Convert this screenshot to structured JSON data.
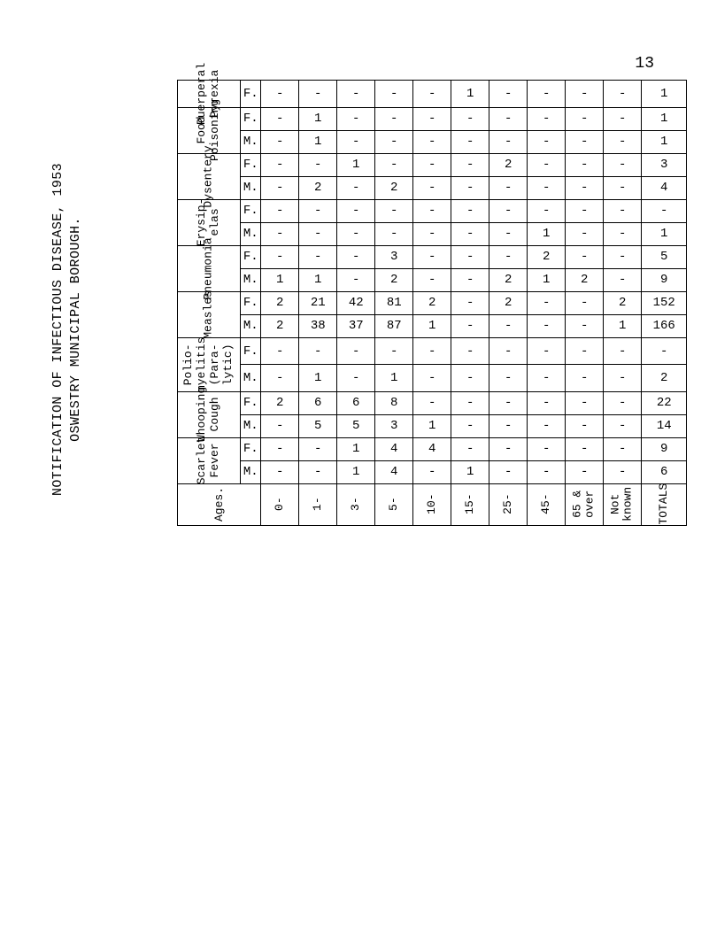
{
  "page_number": "13",
  "doc_title_line1": "NOTIFICATION OF INFECTIOUS DISEASE, 1953",
  "doc_title_line2": "OSWESTRY MUNICIPAL BOROUGH.",
  "ages_header": "Ages.",
  "totals_header": "TOTALS",
  "sex_labels": {
    "m": "M.",
    "f": "F."
  },
  "age_bands": [
    "0-",
    "1-",
    "3-",
    "5-",
    "10-",
    "15-",
    "25-",
    "45-",
    "65 &\nover",
    "Not\nknown"
  ],
  "diseases": [
    {
      "name": "Puerperal\nPyrexia",
      "F": [
        "-",
        "-",
        "-",
        "-",
        "-",
        "1",
        "-",
        "-",
        "-",
        "-"
      ],
      "M": null,
      "tot_F": "1",
      "tot_M": null
    },
    {
      "name": "Food\nPoisoning",
      "F": [
        "-",
        "1",
        "-",
        "-",
        "-",
        "-",
        "-",
        "-",
        "-",
        "-"
      ],
      "M": [
        "-",
        "1",
        "-",
        "-",
        "-",
        "-",
        "-",
        "-",
        "-",
        "-"
      ],
      "tot_F": "1",
      "tot_M": "1"
    },
    {
      "name": "Dysentery",
      "F": [
        "-",
        "-",
        "1",
        "-",
        "-",
        "-",
        "2",
        "-",
        "-",
        "-"
      ],
      "M": [
        "-",
        "2",
        "-",
        "2",
        "-",
        "-",
        "-",
        "-",
        "-",
        "-"
      ],
      "tot_F": "3",
      "tot_M": "4"
    },
    {
      "name": "Erysip-\nelas",
      "F": [
        "-",
        "-",
        "-",
        "-",
        "-",
        "-",
        "-",
        "-",
        "-",
        "-"
      ],
      "M": [
        "-",
        "-",
        "-",
        "-",
        "-",
        "-",
        "-",
        "1",
        "-",
        "-"
      ],
      "tot_F": "-",
      "tot_M": "1"
    },
    {
      "name": "Pneumonia",
      "F": [
        "-",
        "-",
        "-",
        "3",
        "-",
        "-",
        "-",
        "2",
        "-",
        "-"
      ],
      "M": [
        "1",
        "1",
        "-",
        "2",
        "-",
        "-",
        "2",
        "1",
        "2",
        "-"
      ],
      "tot_F": "5",
      "tot_M": "9"
    },
    {
      "name": "Measles",
      "F": [
        "2",
        "21",
        "42",
        "81",
        "2",
        "-",
        "2",
        "-",
        "-",
        "2"
      ],
      "M": [
        "2",
        "38",
        "37",
        "87",
        "1",
        "-",
        "-",
        "-",
        "-",
        "1"
      ],
      "tot_F": "152",
      "tot_M": "166"
    },
    {
      "name": "Polio-\nmyelitis\n(Para-\nlytic)",
      "F": [
        "-",
        "-",
        "-",
        "-",
        "-",
        "-",
        "-",
        "-",
        "-",
        "-"
      ],
      "M": [
        "-",
        "1",
        "-",
        "1",
        "-",
        "-",
        "-",
        "-",
        "-",
        "-"
      ],
      "tot_F": "-",
      "tot_M": "2"
    },
    {
      "name": "Whooping\nCough",
      "F": [
        "2",
        "6",
        "6",
        "8",
        "-",
        "-",
        "-",
        "-",
        "-",
        "-"
      ],
      "M": [
        "-",
        "5",
        "5",
        "3",
        "1",
        "-",
        "-",
        "-",
        "-",
        "-"
      ],
      "tot_F": "22",
      "tot_M": "14"
    },
    {
      "name": "Scarlet\nFever",
      "F": [
        "-",
        "-",
        "1",
        "4",
        "4",
        "-",
        "-",
        "-",
        "-",
        "-"
      ],
      "M": [
        "-",
        "-",
        "1",
        "4",
        "-",
        "1",
        "-",
        "-",
        "-",
        "-"
      ],
      "tot_F": "9",
      "tot_M": "6"
    }
  ]
}
